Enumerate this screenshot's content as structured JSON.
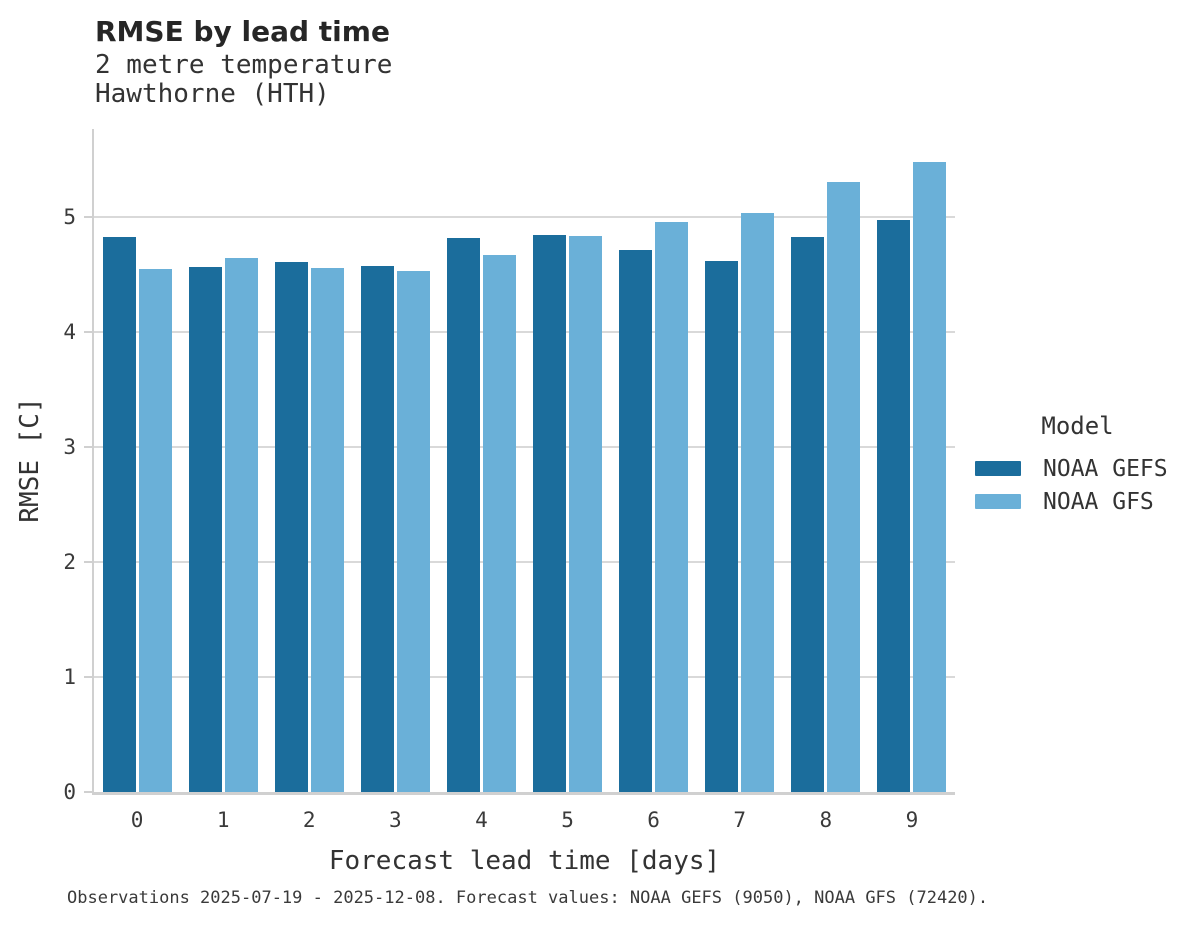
{
  "header": {
    "title": "RMSE by lead time",
    "subtitle_line1": "2 metre temperature",
    "subtitle_line2": "Hawthorne (HTH)"
  },
  "legend": {
    "title": "Model",
    "items": [
      {
        "label": "NOAA GEFS",
        "color": "#1b6d9c"
      },
      {
        "label": "NOAA GFS",
        "color": "#6ab0d8"
      }
    ]
  },
  "footnote": "Observations 2025-07-19 - 2025-12-08. Forecast values: NOAA GEFS (9050), NOAA GFS (72420).",
  "colors": {
    "grid": "#d9d9d9",
    "spine": "#d0d0d0",
    "series_dark": "#1b6d9c",
    "series_light": "#6ab0d8"
  },
  "chart_data": {
    "type": "bar",
    "title": "RMSE by lead time",
    "subtitle": [
      "2 metre temperature",
      "Hawthorne (HTH)"
    ],
    "xlabel": "Forecast lead time [days]",
    "ylabel": "RMSE [C]",
    "categories": [
      "0",
      "1",
      "2",
      "3",
      "4",
      "5",
      "6",
      "7",
      "8",
      "9"
    ],
    "series": [
      {
        "name": "NOAA GEFS",
        "color": "#1b6d9c",
        "values": [
          4.83,
          4.57,
          4.61,
          4.58,
          4.82,
          4.85,
          4.72,
          4.62,
          4.83,
          4.98
        ]
      },
      {
        "name": "NOAA GFS",
        "color": "#6ab0d8",
        "values": [
          4.55,
          4.65,
          4.56,
          4.53,
          4.67,
          4.84,
          4.96,
          5.04,
          5.31,
          5.48
        ]
      }
    ],
    "ylim": [
      0,
      5.77
    ],
    "yticks": [
      0,
      1,
      2,
      3,
      4,
      5
    ],
    "grid": true,
    "legend_title": "Model",
    "legend_position": "right"
  }
}
